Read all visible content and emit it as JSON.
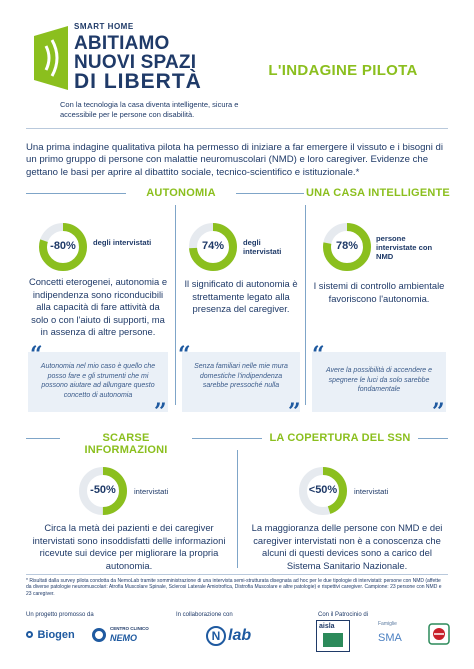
{
  "brand": {
    "small": "SMART HOME",
    "line1": "ABITIAMO",
    "line2": "NUOVI SPAZI",
    "line3": "DI LIBERTÀ",
    "tagline": "Con la tecnologia la casa diventa intelligente, sicura e accessibile per le persone con disabilità."
  },
  "title": "L'INDAGINE PILOTA",
  "intro": "Una prima indagine qualitativa pilota ha permesso di iniziare a far emergere il vissuto e i bisogni di un primo gruppo di persone con malattie neuromuscolari (NMD) e loro caregiver. Evidenze che gettano le basi per aprire al dibattito sociale, tecnico-scientifico e istituzionale.*",
  "sections": {
    "autonomia": "AUTONOMIA",
    "casa": "UNA CASA INTELLIGENTE",
    "scarse": "SCARSE INFORMAZIONI",
    "copertura": "LA COPERTURA DEL SSN"
  },
  "stats": [
    {
      "value": "-80%",
      "fraction": 0.8,
      "label": "degli intervistati",
      "text": "Concetti eterogenei, autonomia e indipendenza sono riconducibili alla capacità di fare attività da solo o con l'aiuto di supporti, ma in assenza di altre persone.",
      "quote": "Autonomia nel mio caso è quello che posso fare e gli strumenti che mi possono aiutare ad allungare questo concetto di autonomia"
    },
    {
      "value": "74%",
      "fraction": 0.74,
      "label": "degli intervistati",
      "text": "Il significato di autonomia è strettamente legato alla presenza del caregiver.",
      "quote": "Senza familiari nelle mie mura domestiche l'indipendenza sarebbe pressoché nulla"
    },
    {
      "value": "78%",
      "fraction": 0.78,
      "label": "persone intervistate con NMD",
      "text": "I sistemi di controllo ambientale favoriscono l'autonomia.",
      "quote": "Avere la possibilità di accendere e spegnere le luci da solo sarebbe fondamentale"
    },
    {
      "value": "-50%",
      "fraction": 0.5,
      "label": "intervistati",
      "text": "Circa la metà dei pazienti e dei caregiver intervistati sono insoddisfatti delle informazioni ricevute sui device per migliorare la propria autonomia."
    },
    {
      "value": "<50%",
      "fraction": 0.45,
      "label": "intervistati",
      "text": "La maggioranza delle persone con NMD e dei caregiver intervistati non è a conoscenza che alcuni di questi devices sono a carico del Sistema Sanitario Nazionale."
    }
  ],
  "footnote": "* Risultati dalla survey pilota condotta da NemoLab tramite somministrazione di una intervista semi-strutturata disegnata ad hoc per le due tipologie di intervistati: persone con NMD (affette da diverse patologie neuromuscolari: Atrofia Muscolare Spinale, Sclerosi Laterale Amiotrofica, Distrofia Muscolare e altre patologie) e rispettivi caregiver. Campione: 23 persone con NMD e 23 caregiver.",
  "footer": {
    "promoted": "Un progetto promosso da",
    "collab": "In collaborazione con",
    "patronage": "Con il Patrocinio di",
    "biogen": "Biogen",
    "nemo": "NEMO",
    "nemo_small": "CENTRO CLINICO",
    "nlab": "lab",
    "aisla": "aisla",
    "sma": "SMA",
    "sma_small": "Famiglie"
  },
  "colors": {
    "green": "#8bbf1e",
    "navy": "#1f3a68",
    "track": "#e6eaef",
    "quote_bg": "#eaf0f7"
  }
}
